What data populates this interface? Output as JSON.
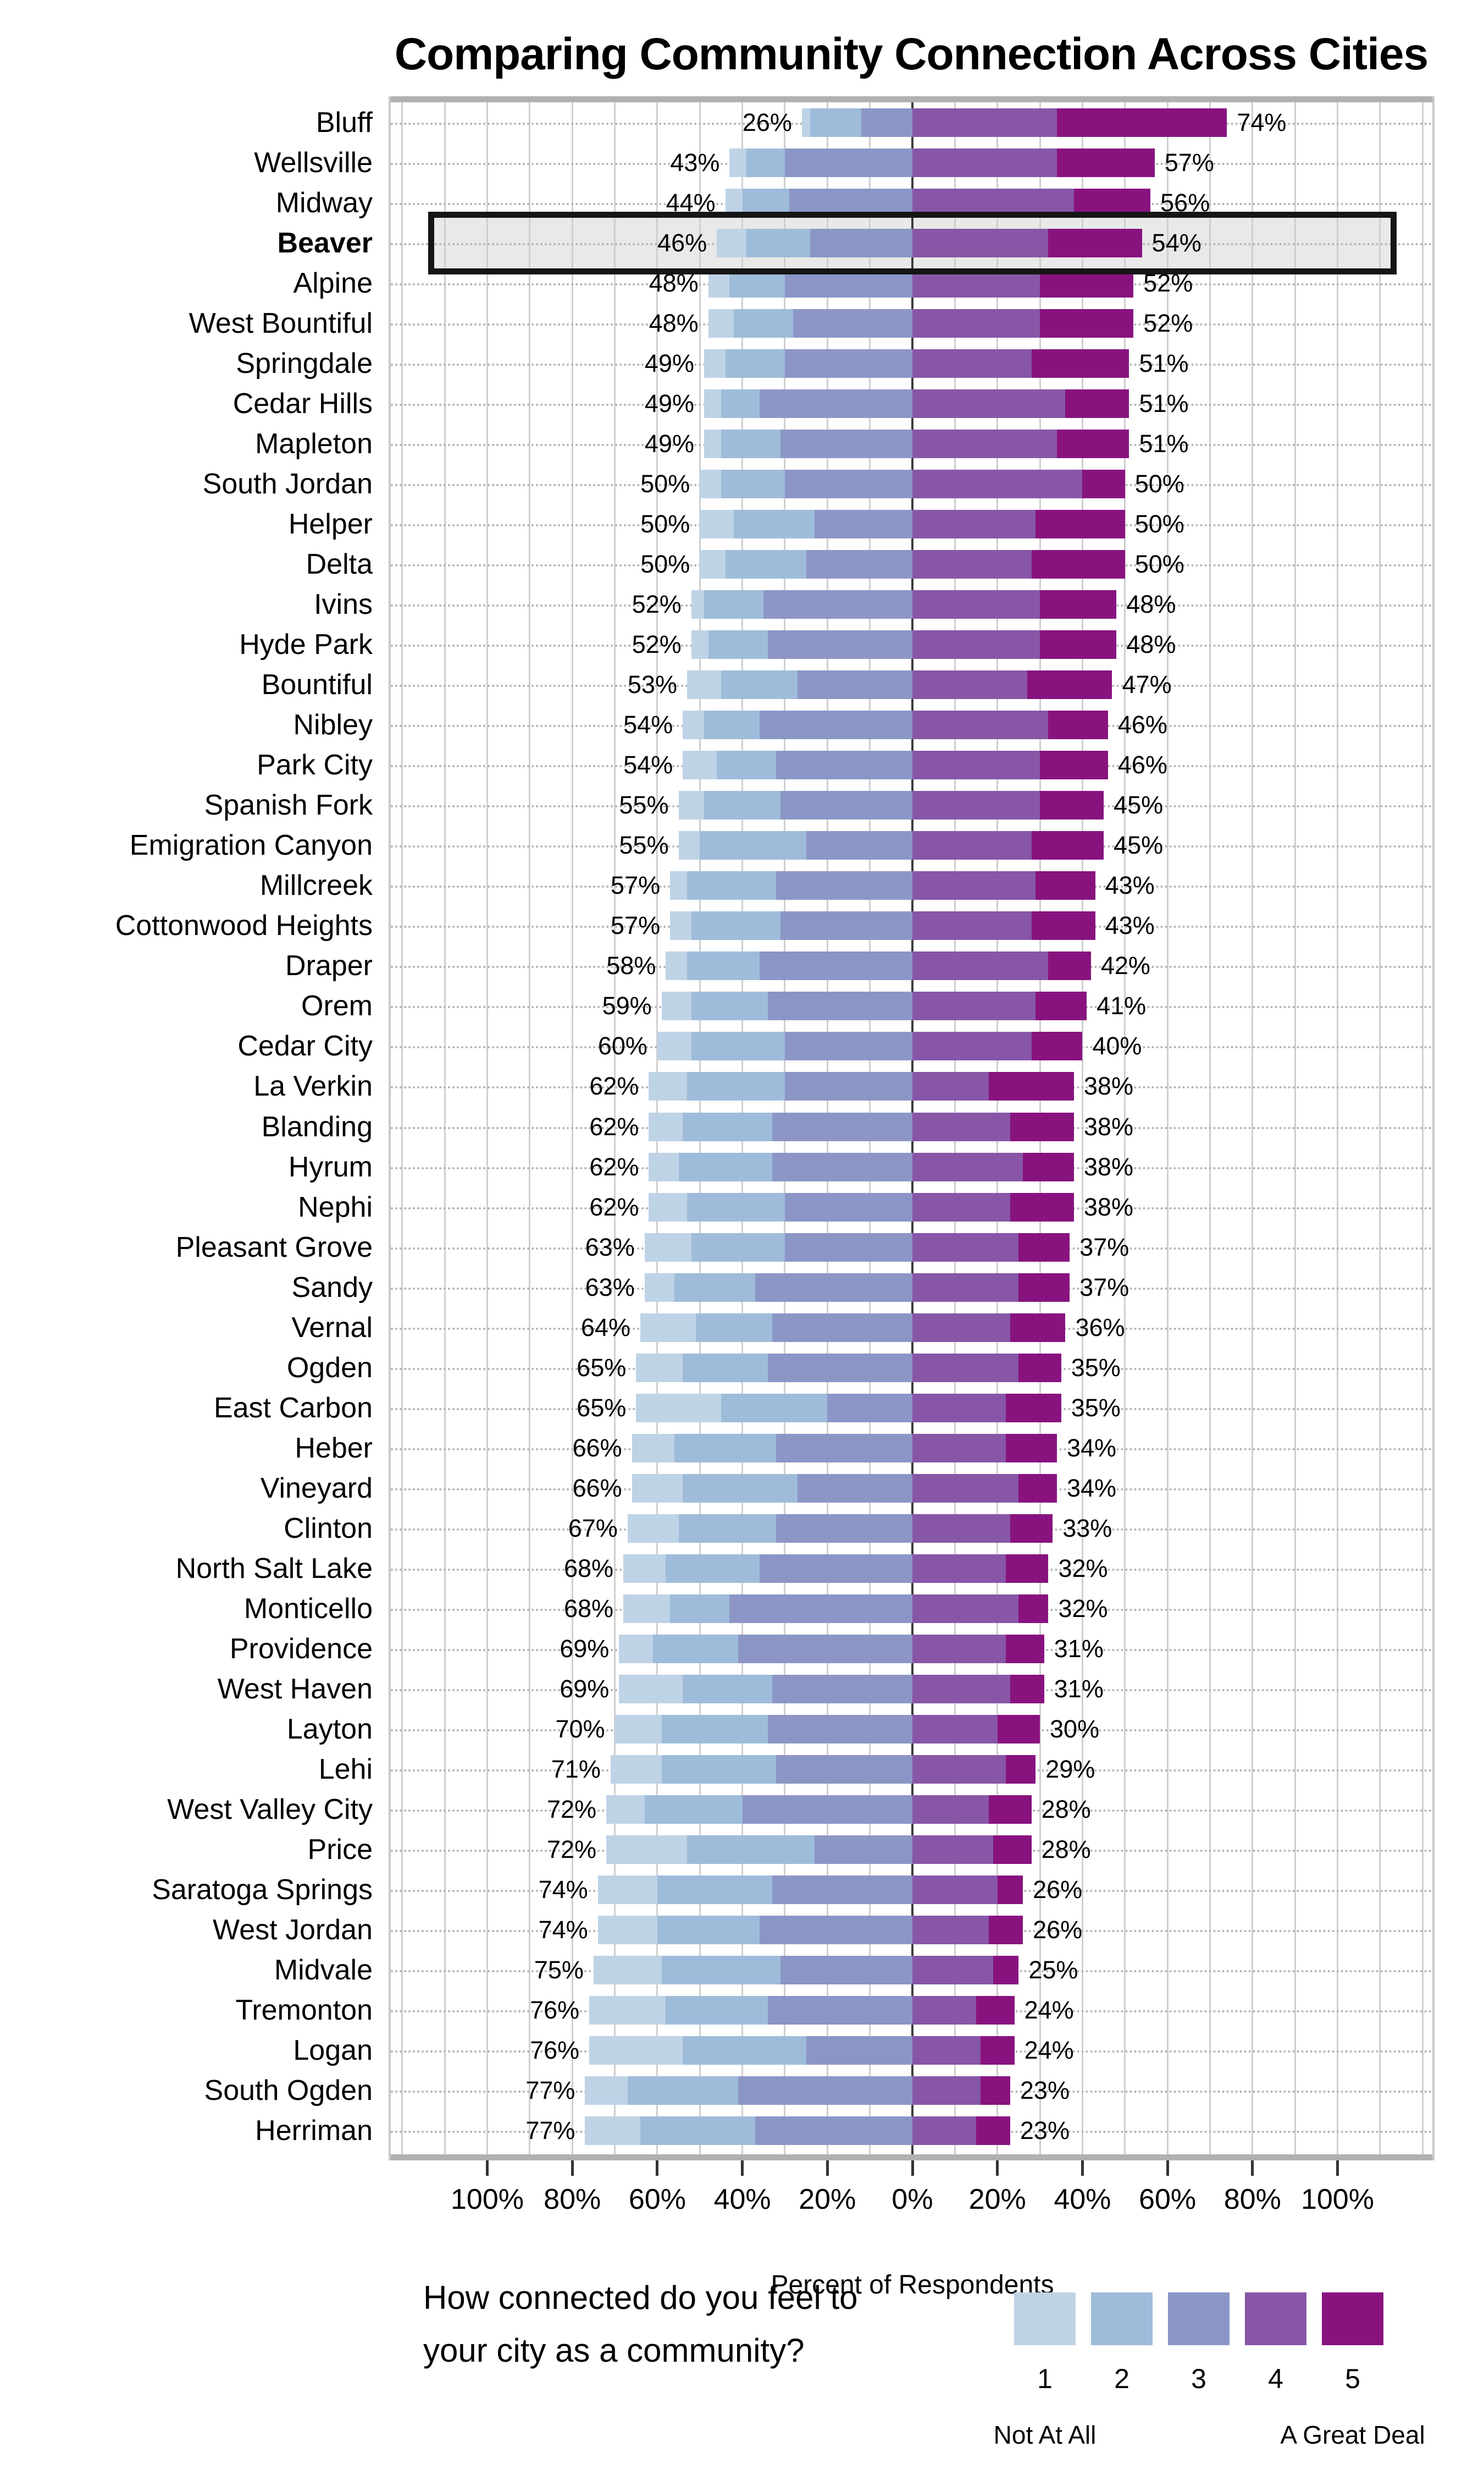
{
  "title": "Comparing Community Connection Across Cities",
  "axis": {
    "xlabel": "Percent of Respondents",
    "tick_labels": [
      "100%",
      "80%",
      "60%",
      "40%",
      "20%",
      "0%",
      "20%",
      "40%",
      "60%",
      "80%",
      "100%"
    ],
    "tick_values": [
      -100,
      -80,
      -60,
      -40,
      -20,
      0,
      20,
      40,
      60,
      80,
      100
    ]
  },
  "legend": {
    "question_line1": "How connected do you feel to",
    "question_line2": "your city as a community?",
    "item_labels": [
      "1",
      "2",
      "3",
      "4",
      "5"
    ],
    "left_end_label": "Not At All",
    "right_end_label": "A Great Deal"
  },
  "colors": {
    "scale": [
      "#bfd3e6",
      "#9ebcda",
      "#8c96c6",
      "#8856a7",
      "#88137f"
    ],
    "highlight_fill": "#e9e9e9",
    "highlight_border": "#151515",
    "gridline": "#cfcfcf",
    "zero_line": "#3d3d3d"
  },
  "highlighted_city": "Beaver",
  "chart_data": {
    "type": "bar",
    "subtype": "diverging-stacked-likert",
    "title": "Comparing Community Connection Across Cities",
    "xlabel": "Percent of Respondents",
    "xlim": [
      -122.5,
      122.5
    ],
    "grid": "vertical every 10%, labeled every 20%",
    "legend_position": "bottom",
    "series_names": [
      "1 Not At All",
      "2",
      "3",
      "4",
      "5 A Great Deal"
    ],
    "categories": [
      "Bluff",
      "Wellsville",
      "Midway",
      "Beaver",
      "Alpine",
      "West Bountiful",
      "Springdale",
      "Cedar Hills",
      "Mapleton",
      "South Jordan",
      "Helper",
      "Delta",
      "Ivins",
      "Hyde Park",
      "Bountiful",
      "Nibley",
      "Park City",
      "Spanish Fork",
      "Emigration Canyon",
      "Millcreek",
      "Cottonwood Heights",
      "Draper",
      "Orem",
      "Cedar City",
      "La Verkin",
      "Blanding",
      "Hyrum",
      "Nephi",
      "Pleasant Grove",
      "Sandy",
      "Vernal",
      "Ogden",
      "East Carbon",
      "Heber",
      "Vineyard",
      "Clinton",
      "North Salt Lake",
      "Monticello",
      "Providence",
      "West Haven",
      "Layton",
      "Lehi",
      "West Valley City",
      "Price",
      "Saratoga Springs",
      "West Jordan",
      "Midvale",
      "Tremonton",
      "Logan",
      "South Ogden",
      "Herriman"
    ],
    "rows": [
      {
        "city": "Bluff",
        "left_pct": 26,
        "right_pct": 74,
        "segments": [
          2,
          12,
          12,
          34,
          40
        ]
      },
      {
        "city": "Wellsville",
        "left_pct": 43,
        "right_pct": 57,
        "segments": [
          4,
          9,
          30,
          34,
          23
        ]
      },
      {
        "city": "Midway",
        "left_pct": 44,
        "right_pct": 56,
        "segments": [
          4,
          11,
          29,
          38,
          18
        ]
      },
      {
        "city": "Beaver",
        "left_pct": 46,
        "right_pct": 54,
        "segments": [
          7,
          15,
          24,
          32,
          22
        ],
        "highlight": true
      },
      {
        "city": "Alpine",
        "left_pct": 48,
        "right_pct": 52,
        "segments": [
          5,
          13,
          30,
          30,
          22
        ]
      },
      {
        "city": "West Bountiful",
        "left_pct": 48,
        "right_pct": 52,
        "segments": [
          6,
          14,
          28,
          30,
          22
        ]
      },
      {
        "city": "Springdale",
        "left_pct": 49,
        "right_pct": 51,
        "segments": [
          5,
          14,
          30,
          28,
          23
        ]
      },
      {
        "city": "Cedar Hills",
        "left_pct": 49,
        "right_pct": 51,
        "segments": [
          4,
          9,
          36,
          36,
          15
        ]
      },
      {
        "city": "Mapleton",
        "left_pct": 49,
        "right_pct": 51,
        "segments": [
          4,
          14,
          31,
          34,
          17
        ]
      },
      {
        "city": "South Jordan",
        "left_pct": 50,
        "right_pct": 50,
        "segments": [
          5,
          15,
          30,
          40,
          10
        ]
      },
      {
        "city": "Helper",
        "left_pct": 50,
        "right_pct": 50,
        "segments": [
          8,
          19,
          23,
          29,
          21
        ]
      },
      {
        "city": "Delta",
        "left_pct": 50,
        "right_pct": 50,
        "segments": [
          6,
          19,
          25,
          28,
          22
        ]
      },
      {
        "city": "Ivins",
        "left_pct": 52,
        "right_pct": 48,
        "segments": [
          3,
          14,
          35,
          30,
          18
        ]
      },
      {
        "city": "Hyde Park",
        "left_pct": 52,
        "right_pct": 48,
        "segments": [
          4,
          14,
          34,
          30,
          18
        ]
      },
      {
        "city": "Bountiful",
        "left_pct": 53,
        "right_pct": 47,
        "segments": [
          8,
          18,
          27,
          27,
          20
        ]
      },
      {
        "city": "Nibley",
        "left_pct": 54,
        "right_pct": 46,
        "segments": [
          5,
          13,
          36,
          32,
          14
        ]
      },
      {
        "city": "Park City",
        "left_pct": 54,
        "right_pct": 46,
        "segments": [
          8,
          14,
          32,
          30,
          16
        ]
      },
      {
        "city": "Spanish Fork",
        "left_pct": 55,
        "right_pct": 45,
        "segments": [
          6,
          18,
          31,
          30,
          15
        ]
      },
      {
        "city": "Emigration Canyon",
        "left_pct": 55,
        "right_pct": 45,
        "segments": [
          5,
          25,
          25,
          28,
          17
        ]
      },
      {
        "city": "Millcreek",
        "left_pct": 57,
        "right_pct": 43,
        "segments": [
          4,
          21,
          32,
          29,
          14
        ]
      },
      {
        "city": "Cottonwood Heights",
        "left_pct": 57,
        "right_pct": 43,
        "segments": [
          5,
          21,
          31,
          28,
          15
        ]
      },
      {
        "city": "Draper",
        "left_pct": 58,
        "right_pct": 42,
        "segments": [
          5,
          17,
          36,
          32,
          10
        ]
      },
      {
        "city": "Orem",
        "left_pct": 59,
        "right_pct": 41,
        "segments": [
          7,
          18,
          34,
          29,
          12
        ]
      },
      {
        "city": "Cedar City",
        "left_pct": 60,
        "right_pct": 40,
        "segments": [
          8,
          22,
          30,
          28,
          12
        ]
      },
      {
        "city": "La Verkin",
        "left_pct": 62,
        "right_pct": 38,
        "segments": [
          9,
          23,
          30,
          18,
          20
        ]
      },
      {
        "city": "Blanding",
        "left_pct": 62,
        "right_pct": 38,
        "segments": [
          8,
          21,
          33,
          23,
          15
        ]
      },
      {
        "city": "Hyrum",
        "left_pct": 62,
        "right_pct": 38,
        "segments": [
          7,
          22,
          33,
          26,
          12
        ]
      },
      {
        "city": "Nephi",
        "left_pct": 62,
        "right_pct": 38,
        "segments": [
          9,
          23,
          30,
          23,
          15
        ]
      },
      {
        "city": "Pleasant Grove",
        "left_pct": 63,
        "right_pct": 37,
        "segments": [
          11,
          22,
          30,
          25,
          12
        ]
      },
      {
        "city": "Sandy",
        "left_pct": 63,
        "right_pct": 37,
        "segments": [
          7,
          19,
          37,
          25,
          12
        ]
      },
      {
        "city": "Vernal",
        "left_pct": 64,
        "right_pct": 36,
        "segments": [
          13,
          18,
          33,
          23,
          13
        ]
      },
      {
        "city": "Ogden",
        "left_pct": 65,
        "right_pct": 35,
        "segments": [
          11,
          20,
          34,
          25,
          10
        ]
      },
      {
        "city": "East Carbon",
        "left_pct": 65,
        "right_pct": 35,
        "segments": [
          20,
          25,
          20,
          22,
          13
        ]
      },
      {
        "city": "Heber",
        "left_pct": 66,
        "right_pct": 34,
        "segments": [
          10,
          24,
          32,
          22,
          12
        ]
      },
      {
        "city": "Vineyard",
        "left_pct": 66,
        "right_pct": 34,
        "segments": [
          12,
          27,
          27,
          25,
          9
        ]
      },
      {
        "city": "Clinton",
        "left_pct": 67,
        "right_pct": 33,
        "segments": [
          12,
          23,
          32,
          23,
          10
        ]
      },
      {
        "city": "North Salt Lake",
        "left_pct": 68,
        "right_pct": 32,
        "segments": [
          10,
          22,
          36,
          22,
          10
        ]
      },
      {
        "city": "Monticello",
        "left_pct": 68,
        "right_pct": 32,
        "segments": [
          11,
          14,
          43,
          25,
          7
        ]
      },
      {
        "city": "Providence",
        "left_pct": 69,
        "right_pct": 31,
        "segments": [
          8,
          20,
          41,
          22,
          9
        ]
      },
      {
        "city": "West Haven",
        "left_pct": 69,
        "right_pct": 31,
        "segments": [
          15,
          21,
          33,
          23,
          8
        ]
      },
      {
        "city": "Layton",
        "left_pct": 70,
        "right_pct": 30,
        "segments": [
          11,
          25,
          34,
          20,
          10
        ]
      },
      {
        "city": "Lehi",
        "left_pct": 71,
        "right_pct": 29,
        "segments": [
          12,
          27,
          32,
          22,
          7
        ]
      },
      {
        "city": "West Valley City",
        "left_pct": 72,
        "right_pct": 28,
        "segments": [
          9,
          23,
          40,
          18,
          10
        ]
      },
      {
        "city": "Price",
        "left_pct": 72,
        "right_pct": 28,
        "segments": [
          19,
          30,
          23,
          19,
          9
        ]
      },
      {
        "city": "Saratoga Springs",
        "left_pct": 74,
        "right_pct": 26,
        "segments": [
          14,
          27,
          33,
          20,
          6
        ]
      },
      {
        "city": "West Jordan",
        "left_pct": 74,
        "right_pct": 26,
        "segments": [
          14,
          24,
          36,
          18,
          8
        ]
      },
      {
        "city": "Midvale",
        "left_pct": 75,
        "right_pct": 25,
        "segments": [
          16,
          28,
          31,
          19,
          6
        ]
      },
      {
        "city": "Tremonton",
        "left_pct": 76,
        "right_pct": 24,
        "segments": [
          18,
          24,
          34,
          15,
          9
        ]
      },
      {
        "city": "Logan",
        "left_pct": 76,
        "right_pct": 24,
        "segments": [
          22,
          29,
          25,
          16,
          8
        ]
      },
      {
        "city": "South Ogden",
        "left_pct": 77,
        "right_pct": 23,
        "segments": [
          10,
          26,
          41,
          16,
          7
        ]
      },
      {
        "city": "Herriman",
        "left_pct": 77,
        "right_pct": 23,
        "segments": [
          13,
          27,
          37,
          15,
          8
        ]
      }
    ]
  }
}
